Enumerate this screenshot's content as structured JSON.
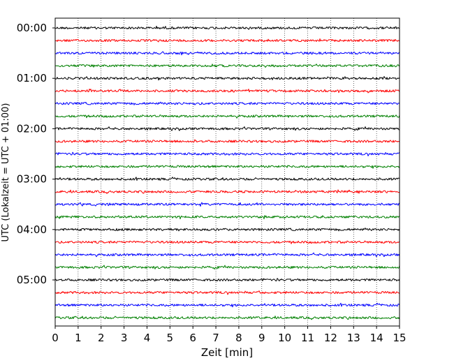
{
  "chart_data": {
    "type": "line",
    "title": "",
    "xlabel": "Zeit  [min]",
    "ylabel": "UTC (Lokalzeit = UTC + 01:00)",
    "xlim": [
      0,
      15
    ],
    "xticks": [
      0,
      1,
      2,
      3,
      4,
      5,
      6,
      7,
      8,
      9,
      10,
      11,
      12,
      13,
      14,
      15
    ],
    "xtick_labels": [
      "0",
      "1",
      "2",
      "3",
      "4",
      "5",
      "6",
      "7",
      "8",
      "9",
      "10",
      "11",
      "12",
      "13",
      "14",
      "15"
    ],
    "y_tick_labels": [
      "00:00",
      "01:00",
      "02:00",
      "03:00",
      "04:00",
      "05:00"
    ],
    "y_tick_rows": [
      0,
      4,
      8,
      12,
      16,
      20
    ],
    "grid": "vertical dotted",
    "trace_colors": [
      "#000000",
      "#ff0000",
      "#0000ff",
      "#008000"
    ],
    "trace_count": 24,
    "trace_interval_min": 15,
    "series_description": "helicorder traces, one per 15 minutes, colors cycling black/red/blue/green"
  }
}
